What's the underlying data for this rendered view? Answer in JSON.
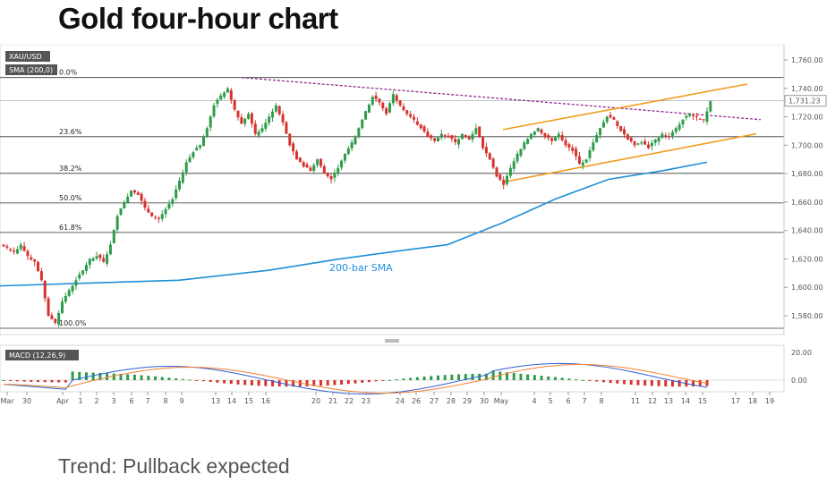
{
  "title": "Gold four-hour chart",
  "caption": "Trend: Pullback expected",
  "chart_data": [
    {
      "type": "candlestick",
      "instrument": "XAU/USD",
      "indicator_legend": "SMA (200,0)",
      "sma_label": "200-bar SMA",
      "price_tag": "1,731.23",
      "ylim": [
        1570,
        1770
      ],
      "y_ticks": [
        "1,760.00",
        "1,740.00",
        "1,720.00",
        "1,700.00",
        "1,680.00",
        "1,660.00",
        "1,640.00",
        "1,620.00",
        "1,600.00",
        "1,580.00"
      ],
      "y_tick_values": [
        1760,
        1740,
        1720,
        1700,
        1680,
        1660,
        1640,
        1620,
        1600,
        1580
      ],
      "x_labels": [
        "Mar",
        "30",
        "Apr",
        "1",
        "2",
        "3",
        "6",
        "7",
        "8",
        "9",
        "13",
        "14",
        "15",
        "16",
        "20",
        "21",
        "22",
        "23",
        "24",
        "26",
        "27",
        "28",
        "29",
        "30",
        "May",
        "4",
        "5",
        "6",
        "7",
        "8",
        "11",
        "12",
        "13",
        "14",
        "15",
        "17",
        "18",
        "19"
      ],
      "fib_levels": [
        {
          "label": "0.0%",
          "price": 1747.6
        },
        {
          "label": "23.6%",
          "price": 1706.0
        },
        {
          "label": "38.2%",
          "price": 1680.2
        },
        {
          "label": "50.0%",
          "price": 1659.4
        },
        {
          "label": "61.8%",
          "price": 1638.6
        },
        {
          "label": "100.0%",
          "price": 1571.2
        }
      ],
      "current_price": 1731.23,
      "colors": {
        "up": "#2e9c4a",
        "down": "#d6322e",
        "sma": "#1f8fd8",
        "channel": "#f39b1a",
        "resistance": "#8e2a8e",
        "price_line": "#9aa0a8"
      },
      "close_path": [
        1628,
        1625,
        1630,
        1622,
        1618,
        1605,
        1580,
        1575,
        1590,
        1598,
        1605,
        1612,
        1620,
        1622,
        1618,
        1630,
        1650,
        1660,
        1668,
        1665,
        1656,
        1650,
        1648,
        1655,
        1662,
        1675,
        1688,
        1695,
        1700,
        1712,
        1728,
        1735,
        1740,
        1725,
        1715,
        1722,
        1708,
        1712,
        1720,
        1728,
        1716,
        1700,
        1690,
        1685,
        1682,
        1690,
        1680,
        1676,
        1684,
        1694,
        1702,
        1712,
        1724,
        1734,
        1730,
        1722,
        1736,
        1728,
        1722,
        1718,
        1712,
        1706,
        1703,
        1708,
        1706,
        1702,
        1708,
        1704,
        1712,
        1698,
        1690,
        1678,
        1672,
        1684,
        1694,
        1702,
        1708,
        1712,
        1706,
        1703,
        1708,
        1700,
        1696,
        1687,
        1690,
        1702,
        1712,
        1720,
        1718,
        1710,
        1704,
        1700,
        1702,
        1698,
        1704,
        1708,
        1706,
        1712,
        1718,
        1722,
        1720,
        1718,
        1731
      ]
    },
    {
      "type": "line",
      "name": "MACD (12,26,9)",
      "y_ticks": [
        "20.00",
        "0.00"
      ],
      "y_tick_values": [
        20,
        0
      ],
      "ylim": [
        -12,
        25
      ]
    }
  ]
}
